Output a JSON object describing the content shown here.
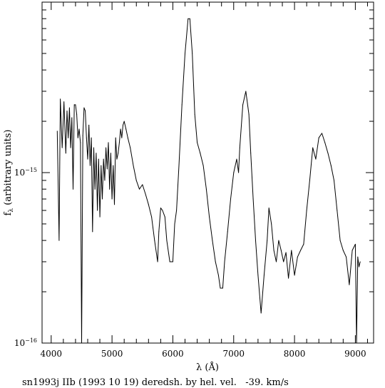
{
  "chart_data": {
    "type": "line",
    "title": "",
    "caption": "sn1993j IIb (1993 10 19) deredsh. by hel. vel.   -39. km/s",
    "xlabel": "λ (Å)",
    "ylabel": "f_λ (arbitrary units)",
    "ylabel_main": "f",
    "ylabel_sub": "λ",
    "ylabel_rest": " (arbitrary units)",
    "xscale": "linear",
    "yscale": "log",
    "xlim": [
      3850,
      9300
    ],
    "ylim": [
      1e-16,
      1e-14
    ],
    "x_ticks": [
      {
        "value": 4000,
        "label": "4000"
      },
      {
        "value": 5000,
        "label": "5000"
      },
      {
        "value": 6000,
        "label": "6000"
      },
      {
        "value": 7000,
        "label": "7000"
      },
      {
        "value": 8000,
        "label": "8000"
      },
      {
        "value": 9000,
        "label": "9000"
      }
    ],
    "y_ticks": [
      {
        "value": 1e-16,
        "mantissa": "10",
        "exponent": "−16"
      },
      {
        "value": 1e-15,
        "mantissa": "10",
        "exponent": "−15"
      }
    ],
    "grid": false,
    "series": [
      {
        "x": [
          4100,
          4130,
          4150,
          4180,
          4210,
          4240,
          4260,
          4280,
          4300,
          4320,
          4340,
          4360,
          4380,
          4400,
          4420,
          4440,
          4460,
          4480,
          4500,
          4520,
          4540,
          4560,
          4580,
          4600,
          4620,
          4640,
          4660,
          4680,
          4700,
          4720,
          4740,
          4760,
          4780,
          4800,
          4820,
          4840,
          4860,
          4880,
          4900,
          4920,
          4940,
          4960,
          4980,
          5000,
          5020,
          5040,
          5060,
          5080,
          5100,
          5120,
          5140,
          5160,
          5180,
          5200,
          5230,
          5260,
          5300,
          5350,
          5400,
          5450,
          5500,
          5550,
          5600,
          5650,
          5700,
          5750,
          5770,
          5800,
          5830,
          5870,
          5900,
          5950,
          6000,
          6030,
          6060,
          6100,
          6150,
          6200,
          6250,
          6280,
          6320,
          6360,
          6400,
          6450,
          6500,
          6550,
          6600,
          6650,
          6700,
          6750,
          6780,
          6820,
          6850,
          6900,
          6950,
          7000,
          7050,
          7080,
          7100,
          7150,
          7200,
          7250,
          7280,
          7320,
          7360,
          7400,
          7450,
          7500,
          7550,
          7580,
          7620,
          7660,
          7700,
          7740,
          7780,
          7820,
          7860,
          7900,
          7950,
          8000,
          8050,
          8100,
          8150,
          8200,
          8250,
          8300,
          8350,
          8400,
          8450,
          8500,
          8550,
          8600,
          8650,
          8700,
          8750,
          8800,
          8850,
          8900,
          8950,
          9000,
          9020,
          9040,
          9060,
          9080
        ],
        "y": [
          1.75e-15,
          4e-16,
          2.7e-15,
          1.4e-15,
          2.6e-15,
          1.3e-15,
          2.3e-15,
          1.6e-15,
          2.4e-15,
          1.4e-15,
          2.1e-15,
          8e-16,
          2.5e-15,
          2.5e-15,
          2.2e-15,
          1.6e-15,
          1.8e-15,
          1.5e-15,
          1e-16,
          1.65e-15,
          2.4e-15,
          2.3e-15,
          1.6e-15,
          1.2e-15,
          1.9e-15,
          1.1e-15,
          1.6e-15,
          4.5e-16,
          1.4e-15,
          8e-16,
          1.3e-15,
          6e-16,
          1.2e-15,
          5.5e-16,
          1.1e-15,
          7e-16,
          1.2e-15,
          9e-16,
          1.4e-15,
          1.05e-15,
          1.5e-15,
          8e-16,
          1.3e-15,
          7e-16,
          1.1e-15,
          6.5e-16,
          1.6e-15,
          1.2e-15,
          1.3e-15,
          1.5e-15,
          1.8e-15,
          1.6e-15,
          1.9e-15,
          2e-15,
          1.8e-15,
          1.6e-15,
          1.4e-15,
          1.1e-15,
          9e-16,
          8e-16,
          8.5e-16,
          7.5e-16,
          6.5e-16,
          5.5e-16,
          4e-16,
          3e-16,
          4.5e-16,
          6.2e-16,
          6e-16,
          5.5e-16,
          4e-16,
          3e-16,
          3e-16,
          5e-16,
          6e-16,
          1.1e-15,
          2.5e-15,
          5e-15,
          8e-15,
          8e-15,
          5e-15,
          2.2e-15,
          1.5e-15,
          1.3e-15,
          1.1e-15,
          8e-16,
          5.5e-16,
          4e-16,
          3e-16,
          2.5e-16,
          2.1e-16,
          2.1e-16,
          3e-16,
          4.5e-16,
          7e-16,
          1e-15,
          1.2e-15,
          1e-15,
          1.4e-15,
          2.5e-15,
          3e-15,
          2.2e-15,
          1.3e-15,
          7e-16,
          4e-16,
          2.5e-16,
          1.5e-16,
          2.5e-16,
          4e-16,
          6.2e-16,
          5e-16,
          3.5e-16,
          3e-16,
          4e-16,
          3.5e-16,
          3e-16,
          3.4e-16,
          2.4e-16,
          3.5e-16,
          2.5e-16,
          3.2e-16,
          3.5e-16,
          3.8e-16,
          6e-16,
          9e-16,
          1.4e-15,
          1.2e-15,
          1.6e-15,
          1.7e-15,
          1.5e-15,
          1.3e-15,
          1.1e-15,
          9e-16,
          6e-16,
          4e-16,
          3.5e-16,
          3.2e-16,
          2.2e-16,
          3.5e-16,
          3.8e-16,
          1e-16,
          3.2e-16,
          2.8e-16,
          3e-16
        ]
      }
    ]
  }
}
